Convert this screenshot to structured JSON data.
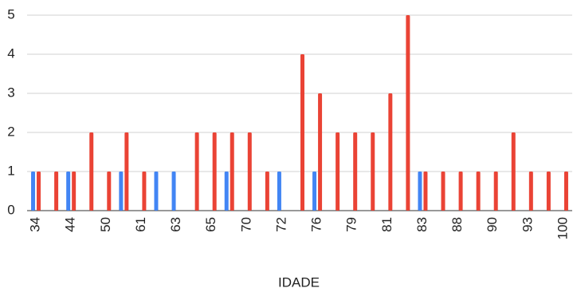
{
  "chart_data": {
    "type": "bar",
    "x_label": "IDADE",
    "categories": [
      "34",
      null,
      "44",
      null,
      "50",
      null,
      "61",
      null,
      "63",
      null,
      "65",
      null,
      "70",
      null,
      "72",
      null,
      "76",
      null,
      "79",
      null,
      "81",
      null,
      "83",
      null,
      "88",
      null,
      "90",
      null,
      "93",
      null,
      "100"
    ],
    "series": [
      {
        "color": "#4285f4",
        "values": [
          1,
          null,
          1,
          null,
          null,
          1,
          null,
          1,
          1,
          null,
          null,
          1,
          null,
          null,
          1,
          null,
          1,
          null,
          null,
          null,
          null,
          null,
          1,
          null,
          null,
          null,
          null,
          null,
          null,
          null,
          null
        ]
      },
      {
        "color": "#ea4335",
        "values": [
          1,
          1,
          1,
          2,
          1,
          2,
          1,
          null,
          null,
          2,
          2,
          2,
          2,
          1,
          null,
          4,
          3,
          2,
          2,
          2,
          3,
          5,
          1,
          1,
          1,
          1,
          1,
          2,
          1,
          1,
          1
        ]
      }
    ],
    "ylim": [
      0,
      5
    ],
    "yticks": [
      0,
      1,
      2,
      3,
      4,
      5
    ],
    "grid": true
  }
}
